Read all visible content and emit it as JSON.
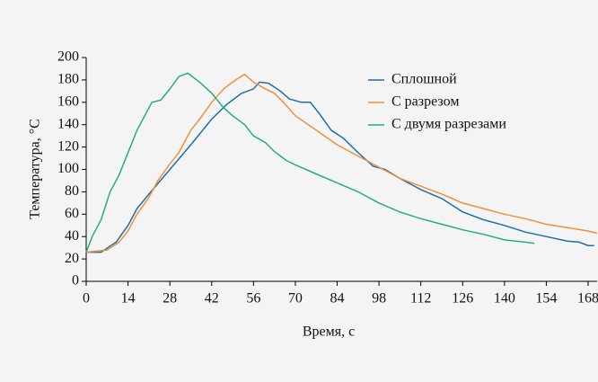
{
  "chart_data": {
    "type": "line",
    "xlabel": "Время, с",
    "ylabel": "Температура, °C",
    "xlim": [
      0,
      171
    ],
    "xticks": [
      0,
      14,
      28,
      42,
      56,
      70,
      84,
      98,
      112,
      126,
      140,
      154,
      168
    ],
    "ylim": [
      0,
      200
    ],
    "yticks": [
      0,
      20,
      40,
      60,
      80,
      100,
      120,
      140,
      160,
      180,
      200
    ],
    "legend": "upper right",
    "series": [
      {
        "name": "Сплошной",
        "color": "#1f6fa8",
        "x": [
          0,
          5,
          10,
          14,
          17,
          21,
          28,
          35,
          42,
          47,
          52,
          56,
          58,
          61,
          65,
          68,
          72,
          75,
          78,
          82,
          86,
          91,
          96,
          100,
          105,
          112,
          119,
          126,
          133,
          140,
          147,
          154,
          161,
          165,
          168,
          170
        ],
        "values": [
          26,
          26,
          35,
          50,
          65,
          78,
          100,
          122,
          145,
          158,
          168,
          172,
          178,
          177,
          170,
          163,
          160,
          160,
          150,
          135,
          128,
          115,
          103,
          100,
          92,
          82,
          74,
          62,
          55,
          50,
          44,
          40,
          36,
          35,
          32,
          32
        ]
      },
      {
        "name": "С разрезом",
        "color": "#f0903a",
        "x": [
          0,
          7,
          11,
          14,
          17,
          21,
          24,
          28,
          31,
          35,
          38,
          42,
          46,
          50,
          53,
          56,
          60,
          63,
          66,
          70,
          77,
          84,
          91,
          98,
          105,
          112,
          119,
          126,
          133,
          140,
          147,
          154,
          161,
          168,
          171
        ],
        "values": [
          26,
          28,
          35,
          45,
          60,
          75,
          90,
          105,
          115,
          135,
          145,
          160,
          172,
          180,
          185,
          178,
          172,
          168,
          160,
          148,
          135,
          122,
          112,
          102,
          92,
          85,
          78,
          70,
          65,
          60,
          56,
          51,
          48,
          45,
          43
        ]
      },
      {
        "name": "С двумя разрезами",
        "color": "#22b07a",
        "x": [
          0,
          2,
          5,
          8,
          11,
          14,
          17,
          20,
          22,
          25,
          28,
          31,
          34,
          38,
          42,
          46,
          49,
          53,
          56,
          60,
          63,
          67,
          70,
          77,
          84,
          91,
          98,
          105,
          112,
          119,
          126,
          133,
          140,
          147,
          150
        ],
        "values": [
          26,
          40,
          55,
          80,
          95,
          115,
          135,
          150,
          160,
          162,
          172,
          183,
          186,
          178,
          168,
          155,
          148,
          140,
          130,
          124,
          116,
          108,
          104,
          96,
          88,
          80,
          70,
          62,
          56,
          51,
          46,
          42,
          37,
          35,
          34
        ]
      }
    ]
  }
}
